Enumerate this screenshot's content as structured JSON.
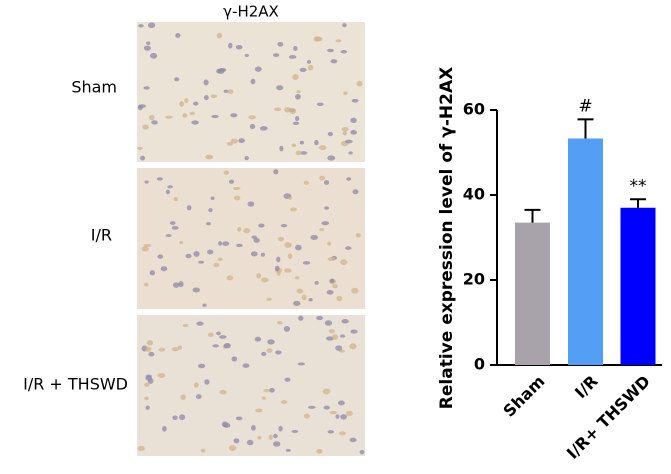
{
  "image_panel": {
    "title": "γ-H2AX",
    "rows": [
      "Sham",
      "I/R",
      "I/R + THSWD"
    ]
  },
  "chart_data": {
    "type": "bar",
    "y_label": "Relative expression level of γ-H2AX",
    "categories": [
      "Sham",
      "I/R",
      "I/R+ THSWD"
    ],
    "values": [
      33.5,
      53.3,
      37.0
    ],
    "errors": [
      3.0,
      4.5,
      2.0
    ],
    "colors": [
      "#a8a3ab",
      "#559ef5",
      "#0000ff"
    ],
    "annotations": [
      null,
      "#",
      "**"
    ],
    "ylim": [
      0,
      60
    ],
    "yticks": [
      0,
      20,
      40,
      60
    ],
    "grid": false
  }
}
